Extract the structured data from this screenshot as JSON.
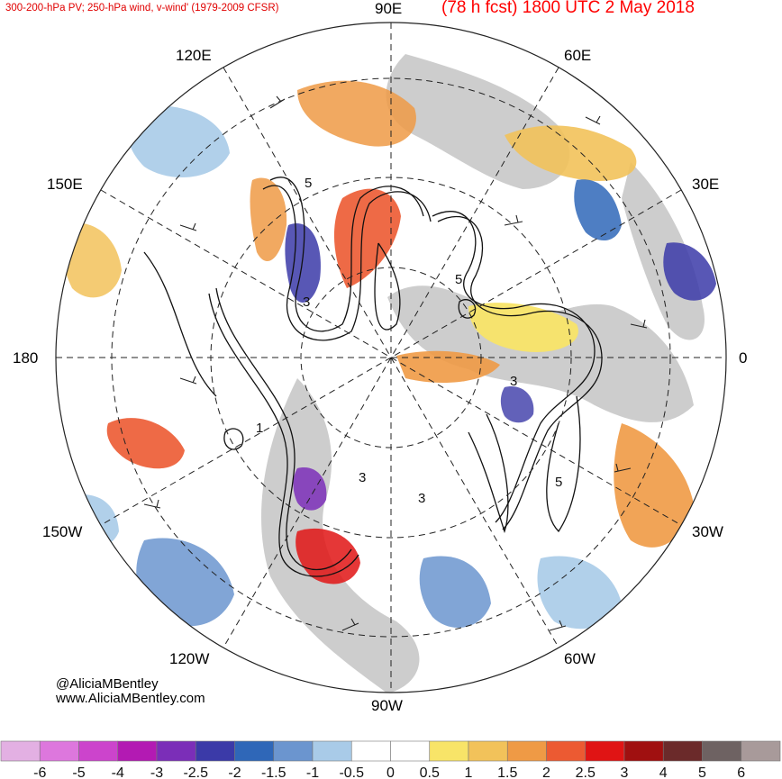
{
  "header": {
    "left_title": "300-200-hPa PV; 250-hPa wind, v-wind' (1979-2009 CFSR)",
    "right_title": "(78 h fcst) 1800 UTC 2 May 2018"
  },
  "credits": {
    "handle": "@AliciaMBentley",
    "website": "www.AliciaMBentley.com"
  },
  "longitude_labels": {
    "e90": "90E",
    "e120": "120E",
    "e60": "60E",
    "e150": "150E",
    "e30": "30E",
    "deg180": "180",
    "deg0": "0",
    "w150": "150W",
    "w30": "30W",
    "w120": "120W",
    "w60": "60W",
    "w90": "90W"
  },
  "contour_labels": [
    "5",
    "3",
    "5",
    "3",
    "3",
    "3",
    "1",
    "5"
  ],
  "colorbar": {
    "ticks": [
      "-6",
      "-5",
      "-4",
      "-3",
      "-2.5",
      "-2",
      "-1.5",
      "-1",
      "-0.5",
      "0",
      "0.5",
      "1",
      "1.5",
      "2",
      "2.5",
      "3",
      "4",
      "5",
      "6"
    ],
    "colors": [
      "#e3b0e3",
      "#dd77dd",
      "#cc44cc",
      "#b31ab3",
      "#7b2eb8",
      "#3b3aa8",
      "#2f67b8",
      "#6b95cf",
      "#a9cbe8",
      "#ffffff",
      "#ffffff",
      "#f8e468",
      "#f2c25a",
      "#ef9a45",
      "#ec5a32",
      "#e01414",
      "#a01010",
      "#6b2a2a",
      "#6e6262",
      "#a89a9a"
    ]
  },
  "colors": {
    "title_red": "#e00000",
    "land_gray": "#c8c8c8"
  }
}
